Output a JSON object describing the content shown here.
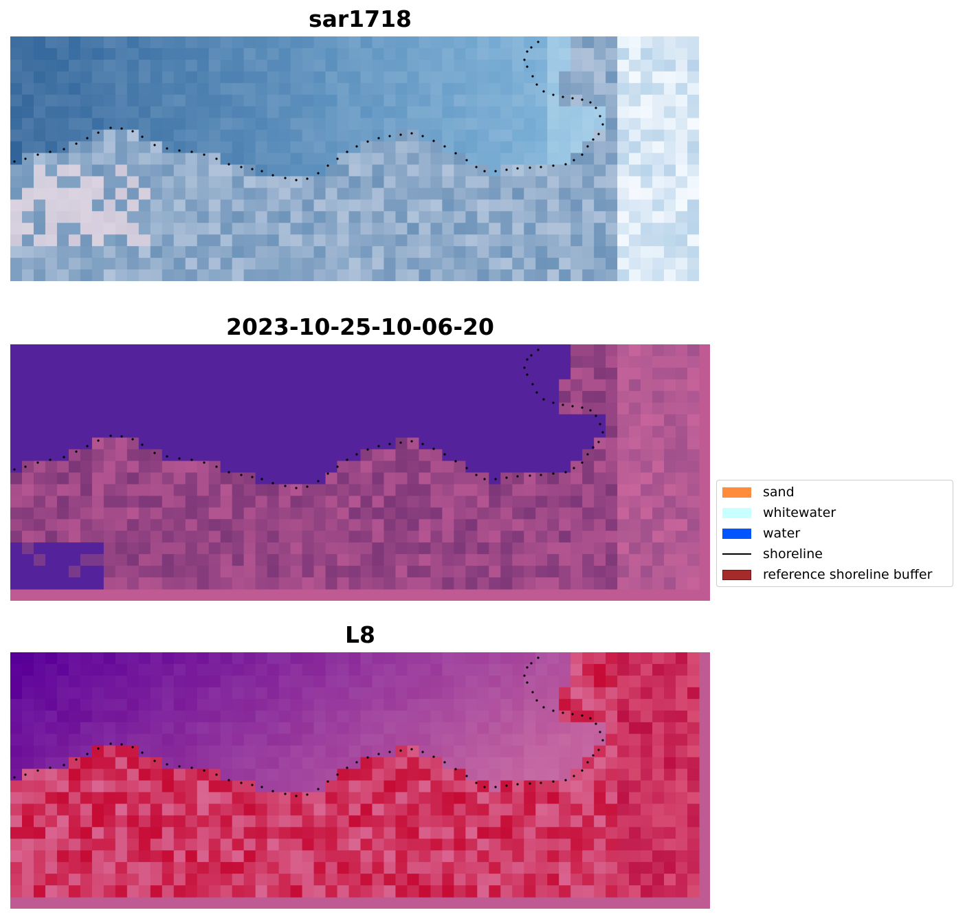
{
  "panels": [
    {
      "title": "sar1718",
      "id": "rgb"
    },
    {
      "title": "2023-10-25-10-06-20",
      "id": "classified"
    },
    {
      "title": "L8",
      "id": "index"
    }
  ],
  "legend": {
    "items": [
      {
        "label": "sand",
        "color": "#ff8c3a",
        "kind": "patch"
      },
      {
        "label": "whitewater",
        "color": "#c8ffff",
        "kind": "patch"
      },
      {
        "label": "water",
        "color": "#0055ff",
        "kind": "patch"
      },
      {
        "label": "shoreline",
        "color": "#000000",
        "kind": "line"
      },
      {
        "label": "reference shoreline buffer",
        "color": "#a52a2a",
        "kind": "patch"
      }
    ]
  },
  "colors": {
    "water_class": "#54229b",
    "land_class": "#8c3f7f",
    "buffer_border": "#c05a92",
    "index_water": "#5c0098",
    "index_land": "#c81f4f"
  }
}
